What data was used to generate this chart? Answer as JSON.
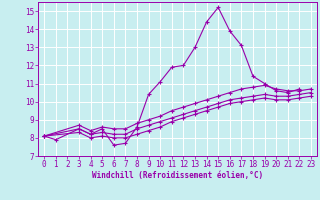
{
  "xlabel": "Windchill (Refroidissement éolien,°C)",
  "background_color": "#c8eef0",
  "grid_color": "#ffffff",
  "line_color": "#9900aa",
  "xlim_min": -0.5,
  "xlim_max": 23.5,
  "ylim_min": 7.0,
  "ylim_max": 15.5,
  "yticks": [
    7,
    8,
    9,
    10,
    11,
    12,
    13,
    14,
    15
  ],
  "xtick_labels": [
    "0",
    "1",
    "2",
    "3",
    "4",
    "5",
    "6",
    "7",
    "8",
    "9",
    "10",
    "11",
    "12",
    "13",
    "14",
    "15",
    "16",
    "17",
    "18",
    "19",
    "20",
    "21",
    "22",
    "23"
  ],
  "line1_x": [
    0,
    1,
    3,
    4,
    5,
    6,
    7,
    8,
    9,
    10,
    11,
    12,
    13,
    14,
    15,
    16,
    17,
    18,
    19,
    20,
    21,
    22
  ],
  "line1_y": [
    8.1,
    7.9,
    8.5,
    8.2,
    8.5,
    7.6,
    7.7,
    8.6,
    10.4,
    11.1,
    11.9,
    12.0,
    13.0,
    14.4,
    15.2,
    13.9,
    13.1,
    11.4,
    11.0,
    10.6,
    10.5,
    10.7
  ],
  "line2_x": [
    0,
    3,
    4,
    5,
    6,
    7,
    8,
    9,
    10,
    11,
    12,
    13,
    14,
    15,
    16,
    17,
    18,
    19,
    20,
    21,
    22,
    23
  ],
  "line2_y": [
    8.1,
    8.7,
    8.4,
    8.6,
    8.5,
    8.5,
    8.8,
    9.0,
    9.2,
    9.5,
    9.7,
    9.9,
    10.1,
    10.3,
    10.5,
    10.7,
    10.8,
    10.9,
    10.7,
    10.6,
    10.6,
    10.7
  ],
  "line3_x": [
    0,
    3,
    4,
    5,
    6,
    7,
    8,
    9,
    10,
    11,
    12,
    13,
    14,
    15,
    16,
    17,
    18,
    19,
    20,
    21,
    22,
    23
  ],
  "line3_y": [
    8.1,
    8.5,
    8.2,
    8.3,
    8.2,
    8.2,
    8.5,
    8.7,
    8.9,
    9.1,
    9.3,
    9.5,
    9.7,
    9.9,
    10.1,
    10.2,
    10.3,
    10.4,
    10.3,
    10.3,
    10.4,
    10.5
  ],
  "line4_x": [
    0,
    3,
    4,
    5,
    6,
    7,
    8,
    9,
    10,
    11,
    12,
    13,
    14,
    15,
    16,
    17,
    18,
    19,
    20,
    21,
    22,
    23
  ],
  "line4_y": [
    8.1,
    8.3,
    8.0,
    8.1,
    8.0,
    8.0,
    8.2,
    8.4,
    8.6,
    8.9,
    9.1,
    9.3,
    9.5,
    9.7,
    9.9,
    10.0,
    10.1,
    10.2,
    10.1,
    10.1,
    10.2,
    10.3
  ],
  "tick_fontsize": 5.5,
  "xlabel_fontsize": 5.5,
  "linewidth": 0.8,
  "markersize": 3.0
}
